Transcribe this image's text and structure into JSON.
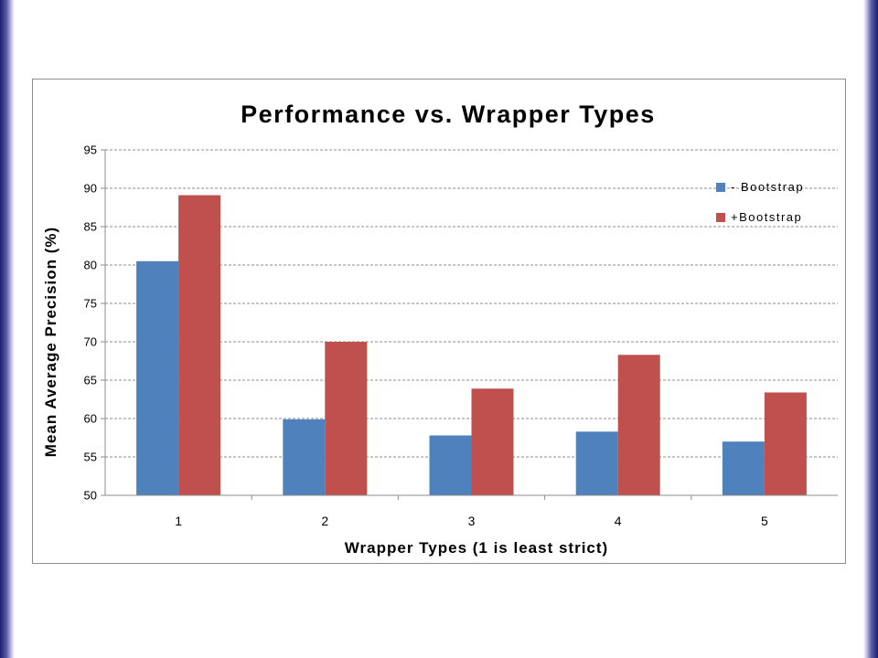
{
  "chart_data": {
    "type": "bar",
    "title": "Performance vs. Wrapper Types",
    "xlabel": "Wrapper Types (1 is least strict)",
    "ylabel": "Mean Average Precision (%)",
    "categories": [
      "1",
      "2",
      "3",
      "4",
      "5"
    ],
    "series": [
      {
        "name": "- Bootstrap",
        "values": [
          80.5,
          59.9,
          57.8,
          58.3,
          57.0
        ]
      },
      {
        "name": "+Bootstrap",
        "values": [
          89.1,
          70.0,
          63.9,
          68.3,
          63.4
        ]
      }
    ],
    "ylim": [
      50,
      95
    ],
    "yticks": [
      "50",
      "55",
      "60",
      "65",
      "70",
      "75",
      "80",
      "85",
      "90",
      "95"
    ],
    "grid": true,
    "legend_position": "top-right",
    "colors": {
      "series": [
        "#4f81bd",
        "#c0504d"
      ],
      "grid": "#8c8c8c",
      "axis": "#8c8c8c",
      "text": "#000000"
    }
  }
}
